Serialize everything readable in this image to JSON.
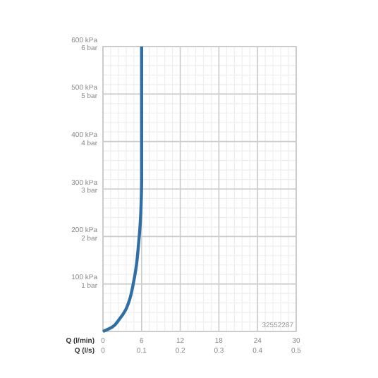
{
  "chart_data": {
    "type": "line",
    "xlabel": "Q (l/min)",
    "x2label": "Q (l/s)",
    "annotations": [
      "32552287"
    ],
    "x": [
      0,
      1.5,
      2.5,
      3.5,
      4.2,
      4.7,
      5.2,
      5.5,
      5.8,
      5.95,
      6,
      6
    ],
    "series": [
      {
        "color": "#2f6fa6",
        "values": [
          0,
          10,
          25,
          45,
          70,
          100,
          140,
          180,
          230,
          280,
          320,
          600
        ]
      }
    ],
    "xlim": [
      0,
      30
    ],
    "xticks": [
      0,
      6,
      12,
      18,
      24,
      30
    ],
    "x2lim": [
      0,
      0.5
    ],
    "x2ticks": [
      0,
      0.1,
      0.2,
      0.3,
      0.4,
      0.5
    ],
    "ylim": [
      0,
      600
    ],
    "yticks": [
      {
        "value": 100,
        "label": "100 kPa"
      },
      {
        "value": 200,
        "label": "200 kPa"
      },
      {
        "value": 300,
        "label": "300 kPa"
      },
      {
        "value": 400,
        "label": "400 kPa"
      },
      {
        "value": 500,
        "label": "500 kPa"
      },
      {
        "value": 600,
        "label": "600 kPa"
      }
    ],
    "y2lim": [
      0,
      6
    ],
    "y2ticks": [
      {
        "value": 1,
        "label": "1 bar"
      },
      {
        "value": 2,
        "label": "2 bar"
      },
      {
        "value": 3,
        "label": "3 bar"
      },
      {
        "value": 4,
        "label": "4 bar"
      },
      {
        "value": 5,
        "label": "5 bar"
      },
      {
        "value": 6,
        "label": "6 bar"
      }
    ],
    "grid": true,
    "marker": "none",
    "line_style": "solid"
  }
}
